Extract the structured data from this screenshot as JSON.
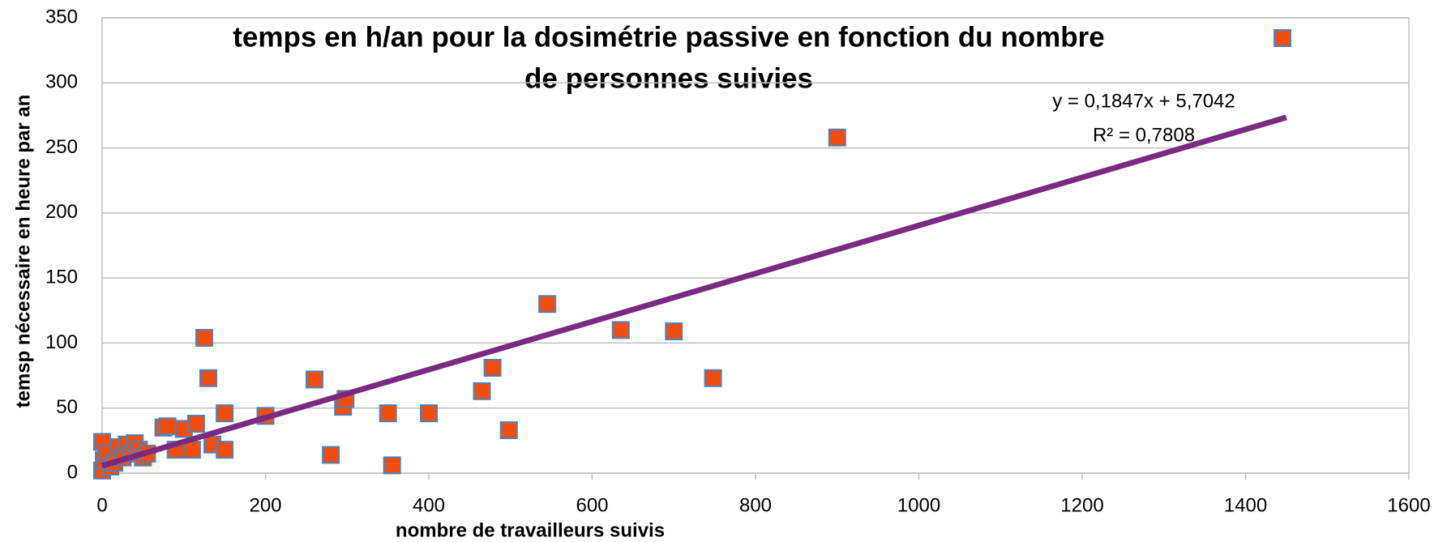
{
  "chart_data": {
    "type": "scatter",
    "title": [
      "temps en h/an pour la dosimétrie passive en fonction du nombre",
      "de personnes suivies"
    ],
    "x_label": "nombre de travailleurs suivis",
    "y_label": "temsp nécessaire en heure par an",
    "series": [
      {
        "color": "#f04e0f",
        "edge_color": "#4f81bd",
        "x": [
          0,
          0,
          2,
          5,
          10,
          15,
          20,
          25,
          30,
          35,
          40,
          45,
          50,
          55,
          75,
          80,
          90,
          100,
          110,
          115,
          125,
          130,
          135,
          150,
          150,
          200,
          260,
          280,
          295,
          298,
          350,
          355,
          400,
          465,
          478,
          498,
          545,
          635,
          700,
          748,
          900
        ],
        "values": [
          2,
          24,
          10,
          15,
          5,
          8,
          20,
          12,
          22,
          15,
          23,
          18,
          12,
          15,
          35,
          36,
          18,
          34,
          18,
          38,
          104,
          73,
          22,
          46,
          18,
          44,
          72,
          14,
          51,
          57,
          46,
          6,
          46,
          63,
          81,
          33,
          130,
          110,
          109,
          73,
          258
        ]
      }
    ],
    "trendline": {
      "color": "#7b2a82",
      "equation": "y = 0,1847x + 5,7042",
      "r2": "R² = 0,7808",
      "x": [
        0,
        1450
      ],
      "values": [
        5.7,
        273.5
      ]
    },
    "xlim": [
      0,
      1600
    ],
    "xticks": [
      0,
      200,
      400,
      600,
      800,
      1000,
      1200,
      1400,
      1600
    ],
    "ylim": [
      0,
      350
    ],
    "yticks": [
      0,
      50,
      100,
      150,
      200,
      250,
      300,
      350
    ],
    "grid": true,
    "legend": "top-right"
  }
}
